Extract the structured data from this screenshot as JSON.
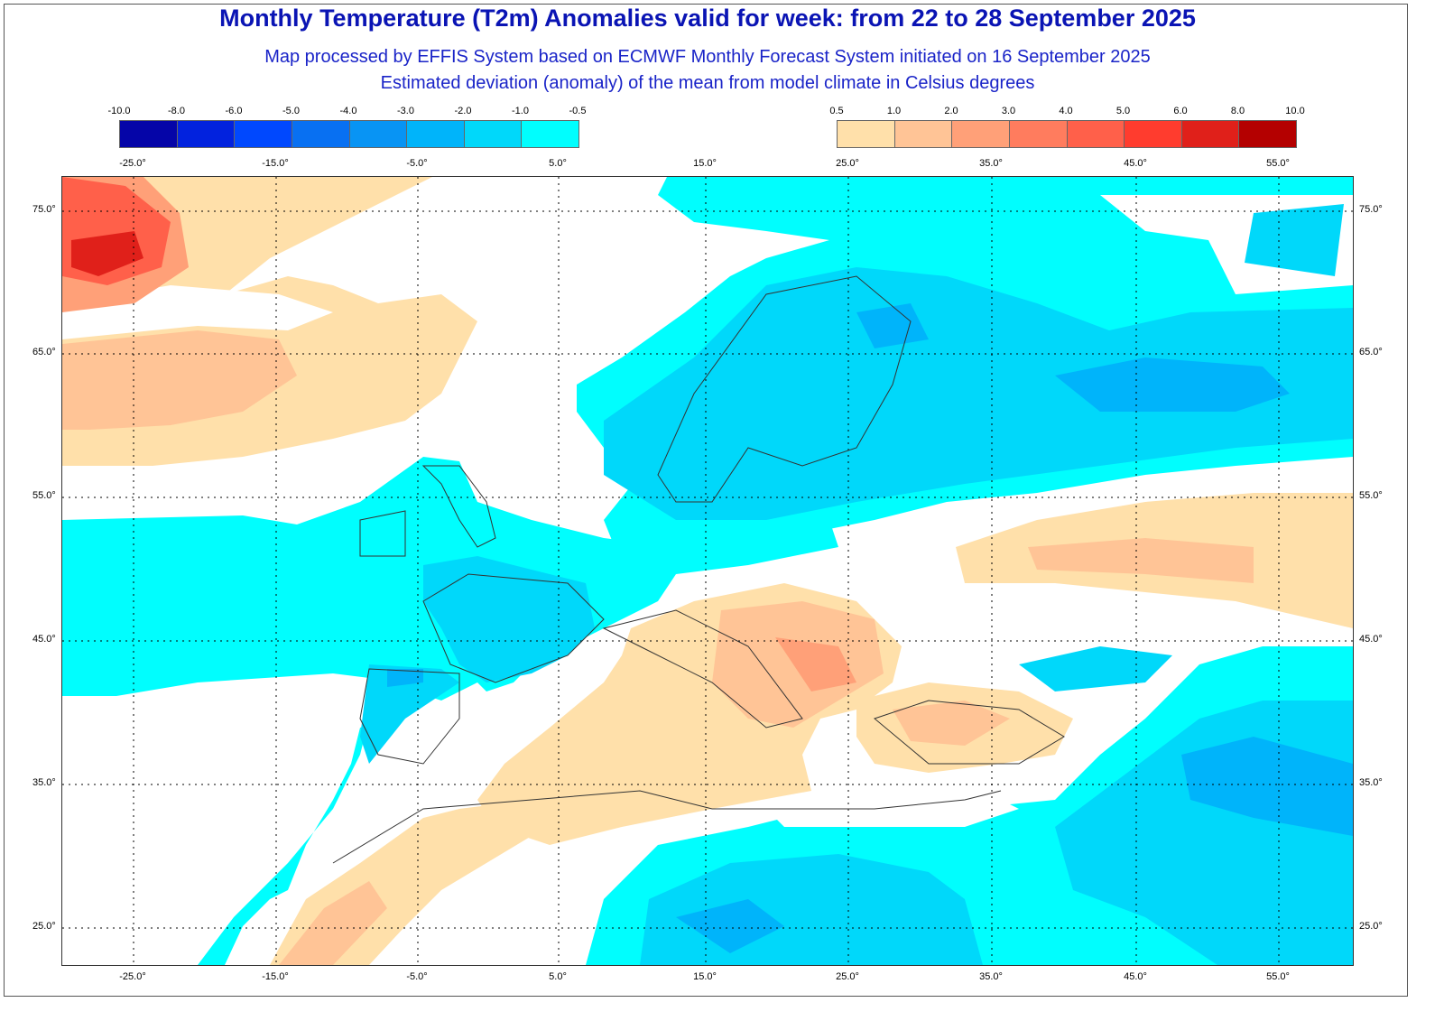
{
  "title": "Monthly Temperature (T2m) Anomalies valid for week: from 22 to 28 September 2025",
  "subtitle1": "Map processed by EFFIS System based on ECMWF Monthly Forecast System initiated on 16 September 2025",
  "subtitle2": "Estimated deviation (anomaly) of the mean from model climate in Celsius degrees",
  "legend_cold": {
    "labels": [
      "-10.0",
      "-8.0",
      "-6.0",
      "-5.0",
      "-4.0",
      "-3.0",
      "-2.0",
      "-1.0",
      "-0.5"
    ],
    "colors": [
      "#0505a8",
      "#0222de",
      "#0048fe",
      "#0870f2",
      "#0894f4",
      "#00b4fa",
      "#00d8fa",
      "#00fefe"
    ]
  },
  "legend_warm": {
    "labels": [
      "0.5",
      "1.0",
      "2.0",
      "3.0",
      "4.0",
      "5.0",
      "6.0",
      "8.0",
      "10.0"
    ],
    "colors": [
      "#ffe0aa",
      "#ffc496",
      "#ffa078",
      "#ff7c5e",
      "#ff604a",
      "#ff3c2e",
      "#e0201a",
      "#b40000"
    ]
  },
  "lon_labels": [
    "-25.0°",
    "-15.0°",
    "-5.0°",
    "5.0°",
    "15.0°",
    "25.0°",
    "35.0°",
    "45.0°",
    "55.0°"
  ],
  "lat_labels": [
    "75.0°",
    "65.0°",
    "55.0°",
    "45.0°",
    "35.0°",
    "25.0°"
  ]
}
